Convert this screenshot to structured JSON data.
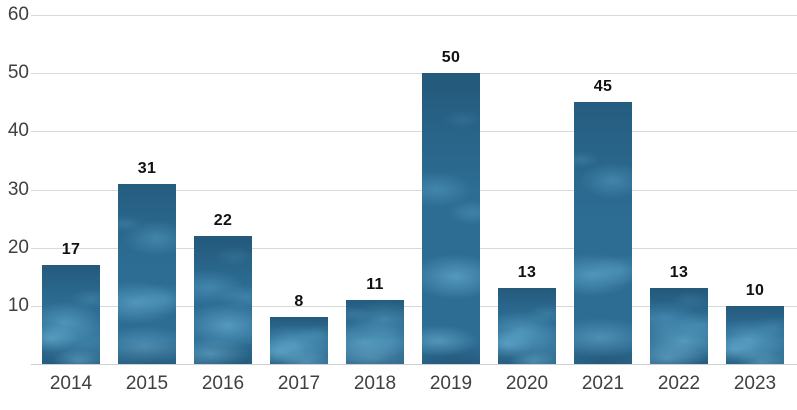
{
  "chart_data": {
    "type": "bar",
    "title": "",
    "xlabel": "",
    "ylabel": "",
    "categories": [
      "2014",
      "2015",
      "2016",
      "2017",
      "2018",
      "2019",
      "2020",
      "2021",
      "2022",
      "2023"
    ],
    "values": [
      17,
      31,
      22,
      8,
      11,
      50,
      13,
      45,
      13,
      10
    ],
    "value_labels": [
      "17",
      "31",
      "22",
      "8",
      "11",
      "50",
      "13",
      "45",
      "13",
      "10"
    ],
    "ylim": [
      0,
      60
    ],
    "ytick_labels": [
      "10",
      "20",
      "30",
      "40",
      "50",
      "60"
    ],
    "ytick_values": [
      10,
      20,
      30,
      40,
      50,
      60
    ],
    "grid": "horizontal gridlines at every 10, plus baseline at 0",
    "legend": "none",
    "bar_fill_style": "photo-textured steel-blue picture fill (cloudy underwater look)",
    "colors": {
      "background": "#ffffff",
      "bar_base": "#2d6c93",
      "bar_highlight": "#6eb9de",
      "bar_shadow": "#1d506f",
      "gridline": "#d9d9d9",
      "baseline": "#cfcfcf",
      "axis_label": "#404040",
      "value_label": "#111111"
    }
  }
}
